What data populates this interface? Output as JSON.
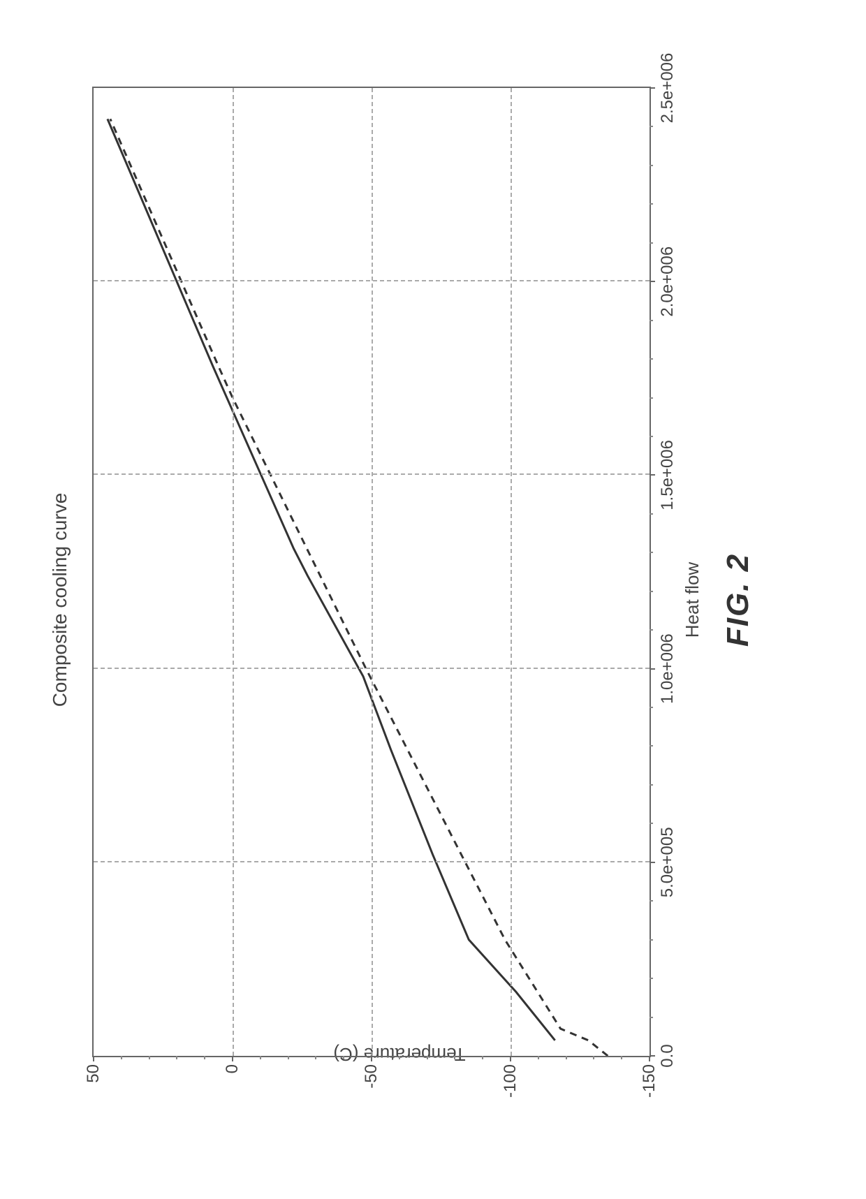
{
  "chart": {
    "type": "line",
    "title": "Composite cooling curve",
    "xlabel": "Heat flow",
    "ylabel": "Temperature (C)",
    "xlim": [
      0,
      2500000
    ],
    "ylim": [
      -150,
      50
    ],
    "x_ticks": [
      {
        "value": 0,
        "label": "0.0"
      },
      {
        "value": 500000,
        "label": "5.0e+005"
      },
      {
        "value": 1000000,
        "label": "1.0e+006"
      },
      {
        "value": 1500000,
        "label": "1.5e+006"
      },
      {
        "value": 2000000,
        "label": "2.0e+006"
      },
      {
        "value": 2500000,
        "label": "2.5e+006"
      }
    ],
    "y_ticks": [
      {
        "value": -150,
        "label": "-150"
      },
      {
        "value": -100,
        "label": "-100"
      },
      {
        "value": -50,
        "label": "-50"
      },
      {
        "value": 0,
        "label": "0"
      },
      {
        "value": 50,
        "label": "50"
      }
    ],
    "x_minor_step": 100000,
    "y_minor_step": 10,
    "grid_x": [
      500000,
      1000000,
      1500000,
      2000000
    ],
    "grid_y": [
      -100,
      -50,
      0
    ],
    "series": [
      {
        "name": "solid",
        "style": "solid",
        "color": "#333333",
        "width": 3,
        "points": [
          {
            "x": 40000,
            "y": -116
          },
          {
            "x": 165000,
            "y": -102
          },
          {
            "x": 300000,
            "y": -85
          },
          {
            "x": 520000,
            "y": -72
          },
          {
            "x": 790000,
            "y": -57
          },
          {
            "x": 980000,
            "y": -47
          },
          {
            "x": 1240000,
            "y": -27
          },
          {
            "x": 1310000,
            "y": -22
          },
          {
            "x": 1780000,
            "y": 7
          },
          {
            "x": 2420000,
            "y": 45
          }
        ]
      },
      {
        "name": "dashed",
        "style": "dashed",
        "color": "#333333",
        "width": 3,
        "dash": "10 8",
        "points": [
          {
            "x": 0,
            "y": -135
          },
          {
            "x": 40000,
            "y": -128
          },
          {
            "x": 70000,
            "y": -118
          },
          {
            "x": 300000,
            "y": -98
          },
          {
            "x": 1000000,
            "y": -48
          },
          {
            "x": 1700000,
            "y": 0
          },
          {
            "x": 1780000,
            "y": 5
          },
          {
            "x": 2420000,
            "y": 44
          }
        ]
      }
    ],
    "background_color": "#ffffff",
    "grid_color": "#aaaaaa",
    "axis_color": "#666666",
    "title_fontsize": 28,
    "label_fontsize": 26,
    "tick_fontsize": 24
  },
  "figure_caption": "FIG. 2"
}
